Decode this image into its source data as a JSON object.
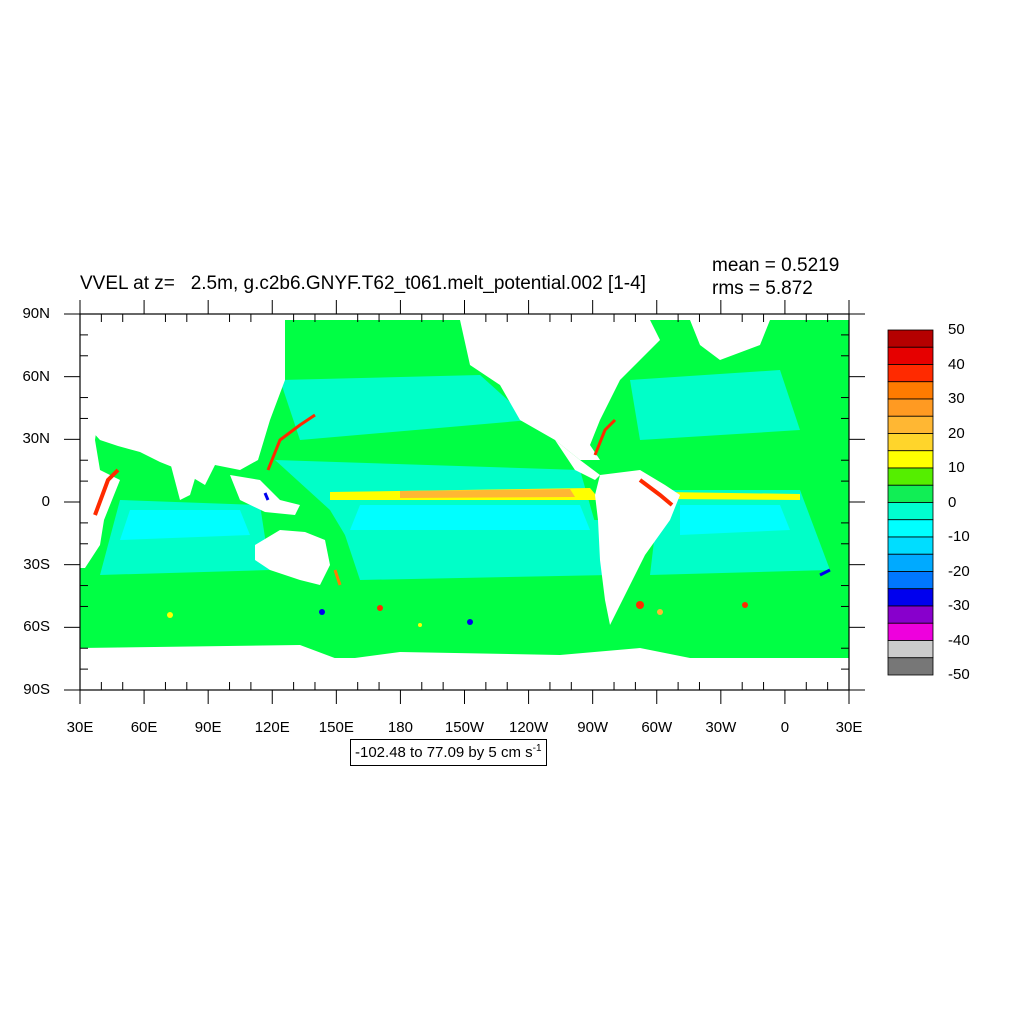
{
  "title": "VVEL at z=   2.5m, g.c2b6.GNYF.T62_t061.melt_potential.002 [1-4]",
  "stats": {
    "mean": "mean = 0.5219",
    "rms": "rms = 5.872"
  },
  "y_axis": {
    "ticks": [
      "90N",
      "60N",
      "30N",
      "0",
      "30S",
      "60S",
      "90S"
    ]
  },
  "x_axis": {
    "ticks": [
      "30E",
      "60E",
      "90E",
      "120E",
      "150E",
      "180",
      "150W",
      "120W",
      "90W",
      "60W",
      "30W",
      "0",
      "30E"
    ]
  },
  "contour_info": {
    "text": "-102.48 to 77.09 by 5 cm s",
    "superscript": "-1"
  },
  "colorbar": {
    "labels": [
      "50",
      "40",
      "30",
      "20",
      "10",
      "0",
      "-10",
      "-20",
      "-30",
      "-40",
      "-50"
    ],
    "colors": [
      "#b50000",
      "#e60000",
      "#ff2a00",
      "#ff7b00",
      "#ff9a22",
      "#ffb733",
      "#ffd52b",
      "#ffff00",
      "#55ee00",
      "#11ee55",
      "#00ffd0",
      "#00ffff",
      "#00ddff",
      "#00aaff",
      "#0077ff",
      "#0000ee",
      "#8800cc",
      "#ee00dd",
      "#cccccc",
      "#777777"
    ]
  },
  "map_colors": {
    "ocean_base": "#00ff44",
    "ocean_weak": "#00ffc8",
    "ocean_negative": "#00ffff",
    "land": "#ffffff"
  }
}
